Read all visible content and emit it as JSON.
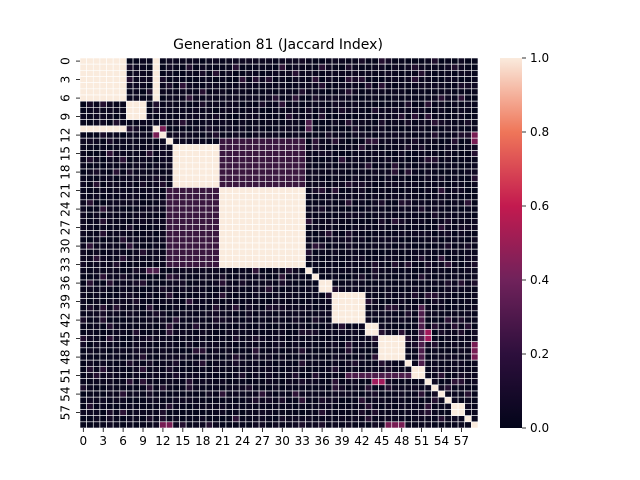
{
  "chart_data": {
    "type": "heatmap",
    "title": "Generation 81 (Jaccard Index)",
    "xlabel": "",
    "ylabel": "",
    "size": 60,
    "x_tick_labels": [
      "0",
      "3",
      "6",
      "9",
      "12",
      "15",
      "18",
      "21",
      "24",
      "27",
      "30",
      "33",
      "36",
      "39",
      "42",
      "45",
      "48",
      "51",
      "54",
      "57"
    ],
    "y_tick_labels": [
      "0",
      "3",
      "6",
      "9",
      "12",
      "15",
      "18",
      "21",
      "24",
      "27",
      "30",
      "33",
      "36",
      "39",
      "42",
      "45",
      "48",
      "51",
      "54",
      "57"
    ],
    "tick_step": 3,
    "colorbar": {
      "min": 0.0,
      "max": 1.0,
      "ticks": [
        "0.0",
        "0.2",
        "0.4",
        "0.6",
        "0.8",
        "1.0"
      ]
    },
    "colormap": [
      "#03051a",
      "#4c1d4b",
      "#a11a5b",
      "#e83f3f",
      "#f6a47c",
      "#faebdd"
    ],
    "grid_line_color": "#ffffff",
    "blocks": [
      {
        "start": 0,
        "end": 6,
        "value": 1.0
      },
      {
        "start": 7,
        "end": 9,
        "value": 1.0
      },
      {
        "start": 11,
        "end": 11,
        "value": 1.0
      },
      {
        "start": 12,
        "end": 12,
        "value": 1.0
      },
      {
        "start": 13,
        "end": 13,
        "value": 1.0
      },
      {
        "start": 14,
        "end": 20,
        "value": 1.0
      },
      {
        "start": 21,
        "end": 33,
        "value": 1.0
      },
      {
        "start": 34,
        "end": 34,
        "value": 1.0
      },
      {
        "start": 35,
        "end": 35,
        "value": 1.0
      },
      {
        "start": 36,
        "end": 37,
        "value": 1.0
      },
      {
        "start": 38,
        "end": 42,
        "value": 1.0
      },
      {
        "start": 43,
        "end": 44,
        "value": 1.0
      },
      {
        "start": 45,
        "end": 48,
        "value": 1.0
      },
      {
        "start": 49,
        "end": 49,
        "value": 1.0
      },
      {
        "start": 50,
        "end": 51,
        "value": 1.0
      },
      {
        "start": 52,
        "end": 52,
        "value": 1.0
      },
      {
        "start": 53,
        "end": 53,
        "value": 1.0
      },
      {
        "start": 54,
        "end": 54,
        "value": 1.0
      },
      {
        "start": 55,
        "end": 55,
        "value": 1.0
      },
      {
        "start": 56,
        "end": 57,
        "value": 1.0
      },
      {
        "start": 58,
        "end": 58,
        "value": 1.0
      },
      {
        "start": 59,
        "end": 59,
        "value": 1.0
      }
    ],
    "off_diagonal_blocks": [
      {
        "rows": [
          0,
          6
        ],
        "cols": [
          11,
          11
        ],
        "value": 1.0
      },
      {
        "rows": [
          11,
          11
        ],
        "cols": [
          0,
          6
        ],
        "value": 1.0
      }
    ],
    "notable_cells": [
      {
        "rows": [
          21,
          21
        ],
        "cols": [
          13,
          33
        ],
        "value": 0.25
      },
      {
        "rows": [
          13,
          33
        ],
        "cols": [
          21,
          21
        ],
        "value": 0.25
      },
      {
        "rows": [
          21,
          33
        ],
        "cols": [
          13,
          20
        ],
        "value": 0.15
      },
      {
        "rows": [
          13,
          20
        ],
        "cols": [
          21,
          33
        ],
        "value": 0.15
      },
      {
        "rows": [
          12,
          12
        ],
        "cols": [
          11,
          11
        ],
        "value": 0.3
      },
      {
        "rows": [
          11,
          11
        ],
        "cols": [
          12,
          12
        ],
        "value": 0.3
      },
      {
        "rows": [
          44,
          45
        ],
        "cols": [
          52,
          52
        ],
        "value": 0.4
      },
      {
        "rows": [
          52,
          52
        ],
        "cols": [
          44,
          45
        ],
        "value": 0.4
      },
      {
        "rows": [
          12,
          13
        ],
        "cols": [
          59,
          59
        ],
        "value": 0.3
      },
      {
        "rows": [
          59,
          59
        ],
        "cols": [
          12,
          13
        ],
        "value": 0.3
      },
      {
        "rows": [
          46,
          48
        ],
        "cols": [
          59,
          59
        ],
        "value": 0.3
      },
      {
        "rows": [
          59,
          59
        ],
        "cols": [
          46,
          48
        ],
        "value": 0.3
      },
      {
        "rows": [
          51,
          51
        ],
        "cols": [
          40,
          50
        ],
        "value": 0.2
      },
      {
        "rows": [
          40,
          50
        ],
        "cols": [
          51,
          51
        ],
        "value": 0.2
      },
      {
        "rows": [
          34,
          34
        ],
        "cols": [
          10,
          11
        ],
        "value": 0.2
      },
      {
        "rows": [
          10,
          11
        ],
        "cols": [
          34,
          34
        ],
        "value": 0.2
      }
    ],
    "background_value_range": [
      0.0,
      0.12
    ],
    "grid": true,
    "legend": "colorbar-right"
  }
}
